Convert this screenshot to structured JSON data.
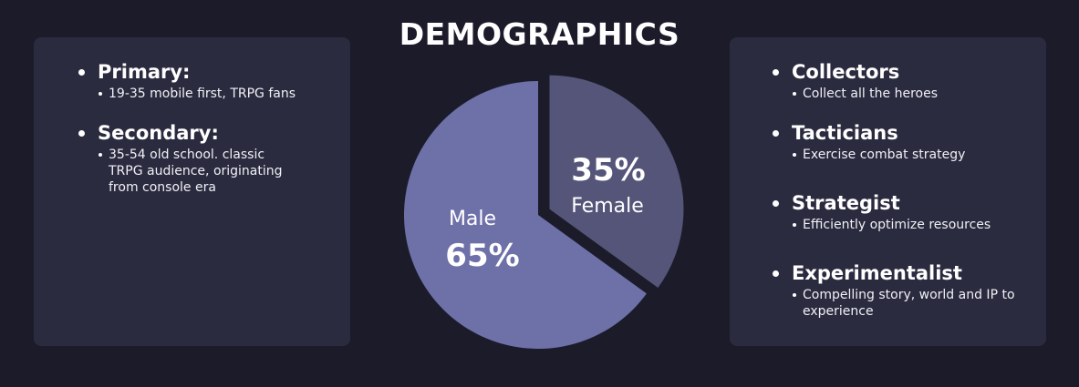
{
  "title": "DEMOGRAPHICS",
  "left_panel": {
    "groups": [
      {
        "heading": "Primary:",
        "items": [
          "19-35 mobile first, TRPG fans"
        ]
      },
      {
        "heading": "Secondary:",
        "items": [
          "35-54 old school. classic TRPG audience, originating from console era"
        ]
      }
    ]
  },
  "right_panel": {
    "groups": [
      {
        "heading": "Collectors",
        "items": [
          "Collect all the heroes"
        ]
      },
      {
        "heading": "Tacticians",
        "items": [
          "Exercise combat strategy"
        ]
      },
      {
        "heading": "Strategist",
        "items": [
          "Efficiently optimize resources"
        ]
      },
      {
        "heading": "Experimentalist",
        "items": [
          "Compelling story, world and IP to experience"
        ]
      }
    ]
  },
  "chart_data": {
    "type": "pie",
    "title": "",
    "slices": [
      {
        "label": "Female",
        "value": 35,
        "display": "35%",
        "color": "#55557a",
        "exploded": true
      },
      {
        "label": "Male",
        "value": 65,
        "display": "65%",
        "color": "#6e70a8",
        "exploded": false
      }
    ]
  },
  "colors": {
    "background": "#1b1b2a",
    "panel": "#2b2b40",
    "text": "#ffffff"
  }
}
